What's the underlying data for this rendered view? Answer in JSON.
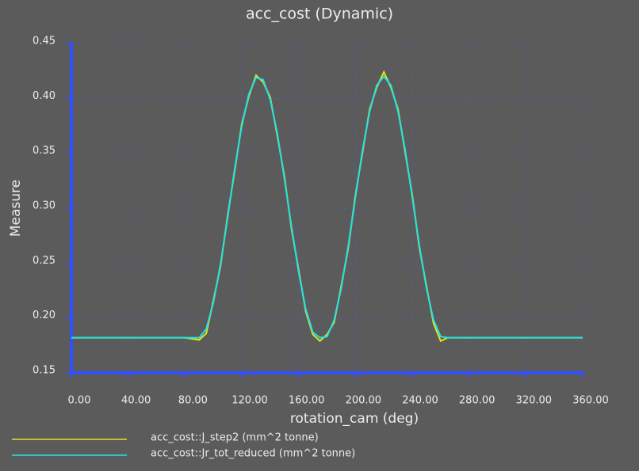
{
  "chart_data": {
    "type": "line",
    "title": "acc_cost (Dynamic)",
    "x_label": "rotation_cam (deg)",
    "y_label": "Measure",
    "xlim": [
      0,
      360
    ],
    "ylim": [
      0.15,
      0.45
    ],
    "xticks": [
      {
        "value": 0,
        "label": "0.00"
      },
      {
        "value": 40,
        "label": "40.00"
      },
      {
        "value": 80,
        "label": "80.00"
      },
      {
        "value": 120,
        "label": "120.00"
      },
      {
        "value": 160,
        "label": "160.00"
      },
      {
        "value": 200,
        "label": "200.00"
      },
      {
        "value": 240,
        "label": "240.00"
      },
      {
        "value": 280,
        "label": "280.00"
      },
      {
        "value": 320,
        "label": "320.00"
      },
      {
        "value": 360,
        "label": "360.00"
      }
    ],
    "yticks": [
      0.15,
      {
        "value": 0.2,
        "label": "0.20"
      },
      0.25,
      {
        "value": 0.3,
        "label": "0.30"
      },
      0.35,
      {
        "value": 0.4,
        "label": "0.40"
      },
      0.45
    ],
    "grid": true,
    "x": [
      0,
      10,
      20,
      30,
      40,
      50,
      60,
      70,
      80,
      90,
      95,
      100,
      105,
      110,
      115,
      120,
      125,
      130,
      135,
      140,
      145,
      150,
      155,
      160,
      165,
      170,
      175,
      180,
      185,
      190,
      195,
      200,
      205,
      210,
      215,
      220,
      225,
      230,
      235,
      240,
      245,
      250,
      255,
      260,
      265,
      270,
      280,
      290,
      300,
      310,
      320,
      330,
      340,
      350,
      360
    ],
    "series": [
      {
        "name": "acc_cost::J_step2 (mm^2 tonne)",
        "color": "#e3e31c",
        "values": [
          0.182,
          0.182,
          0.182,
          0.182,
          0.182,
          0.182,
          0.182,
          0.182,
          0.182,
          0.18,
          0.186,
          0.216,
          0.247,
          0.293,
          0.334,
          0.377,
          0.402,
          0.421,
          0.415,
          0.401,
          0.366,
          0.329,
          0.281,
          0.244,
          0.206,
          0.185,
          0.179,
          0.185,
          0.196,
          0.229,
          0.264,
          0.312,
          0.351,
          0.39,
          0.41,
          0.424,
          0.41,
          0.39,
          0.351,
          0.312,
          0.264,
          0.229,
          0.195,
          0.179,
          0.182,
          0.182,
          0.182,
          0.182,
          0.182,
          0.182,
          0.182,
          0.182,
          0.182,
          0.182,
          0.182
        ]
      },
      {
        "name": "acc_cost::Jr_tot_reduced (mm^2 tonne)",
        "color": "#22e2e2",
        "values": [
          0.182,
          0.182,
          0.182,
          0.182,
          0.182,
          0.182,
          0.182,
          0.182,
          0.182,
          0.182,
          0.19,
          0.214,
          0.249,
          0.291,
          0.336,
          0.375,
          0.404,
          0.419,
          0.417,
          0.399,
          0.368,
          0.327,
          0.283,
          0.242,
          0.208,
          0.187,
          0.182,
          0.183,
          0.198,
          0.227,
          0.266,
          0.31,
          0.353,
          0.388,
          0.412,
          0.42,
          0.412,
          0.388,
          0.353,
          0.31,
          0.266,
          0.227,
          0.198,
          0.183,
          0.182,
          0.182,
          0.182,
          0.182,
          0.182,
          0.182,
          0.182,
          0.182,
          0.182,
          0.182,
          0.182
        ]
      }
    ]
  }
}
